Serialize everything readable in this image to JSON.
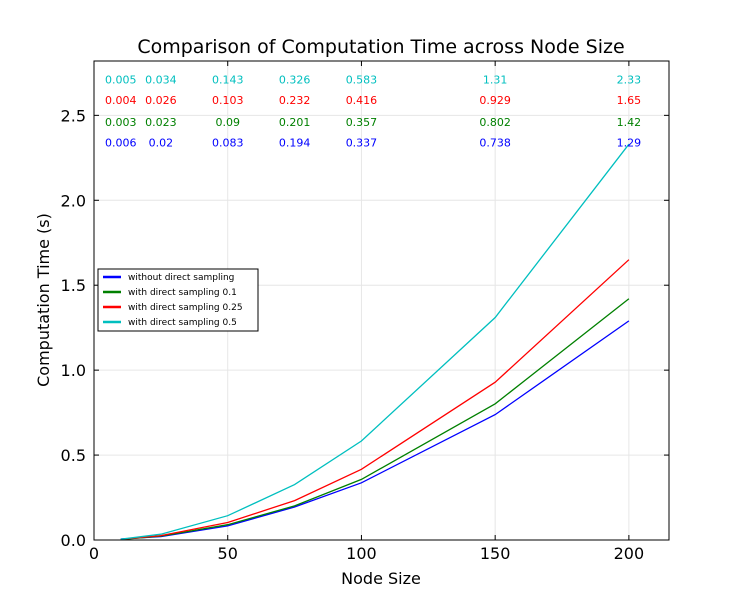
{
  "chart_data": {
    "type": "line",
    "title": "Comparison of Computation Time across Node Size",
    "xlabel": "Node Size",
    "ylabel": "Computation Time (s)",
    "xlim": [
      0,
      215
    ],
    "ylim": [
      0,
      2.82
    ],
    "xticks": [
      0,
      50,
      100,
      150,
      200
    ],
    "xtick_labels": [
      "0",
      "50",
      "100",
      "150",
      "200"
    ],
    "yticks": [
      0.0,
      0.5,
      1.0,
      1.5,
      2.0,
      2.5
    ],
    "ytick_labels": [
      "0.0",
      "0.5",
      "1.0",
      "1.5",
      "2.0",
      "2.5"
    ],
    "grid": true,
    "legend_position": "center-left",
    "x": [
      10,
      25,
      50,
      75,
      100,
      150,
      200
    ],
    "series": [
      {
        "name": "without direct sampling",
        "color": "#0000ff",
        "values": [
          0.006,
          0.02,
          0.083,
          0.194,
          0.337,
          0.738,
          1.29
        ],
        "labels": [
          "0.006",
          "0.02",
          "0.083",
          "0.194",
          "0.337",
          "0.738",
          "1.29"
        ]
      },
      {
        "name": "with direct sampling 0.1",
        "color": "#008000",
        "values": [
          0.003,
          0.023,
          0.09,
          0.201,
          0.357,
          0.802,
          1.42
        ],
        "labels": [
          "0.003",
          "0.023",
          "0.09",
          "0.201",
          "0.357",
          "0.802",
          "1.42"
        ]
      },
      {
        "name": "with direct sampling 0.25",
        "color": "#ff0000",
        "values": [
          0.004,
          0.026,
          0.103,
          0.232,
          0.416,
          0.929,
          1.65
        ],
        "labels": [
          "0.004",
          "0.026",
          "0.103",
          "0.232",
          "0.416",
          "0.929",
          "1.65"
        ]
      },
      {
        "name": "with direct sampling 0.5",
        "color": "#00bfbf",
        "values": [
          0.005,
          0.034,
          0.143,
          0.326,
          0.583,
          1.31,
          2.33
        ],
        "labels": [
          "0.005",
          "0.034",
          "0.143",
          "0.326",
          "0.583",
          "1.31",
          "2.33"
        ]
      }
    ],
    "label_rows": [
      2.71,
      2.59,
      2.46,
      2.34
    ],
    "label_row_order": [
      3,
      2,
      1,
      0
    ]
  }
}
